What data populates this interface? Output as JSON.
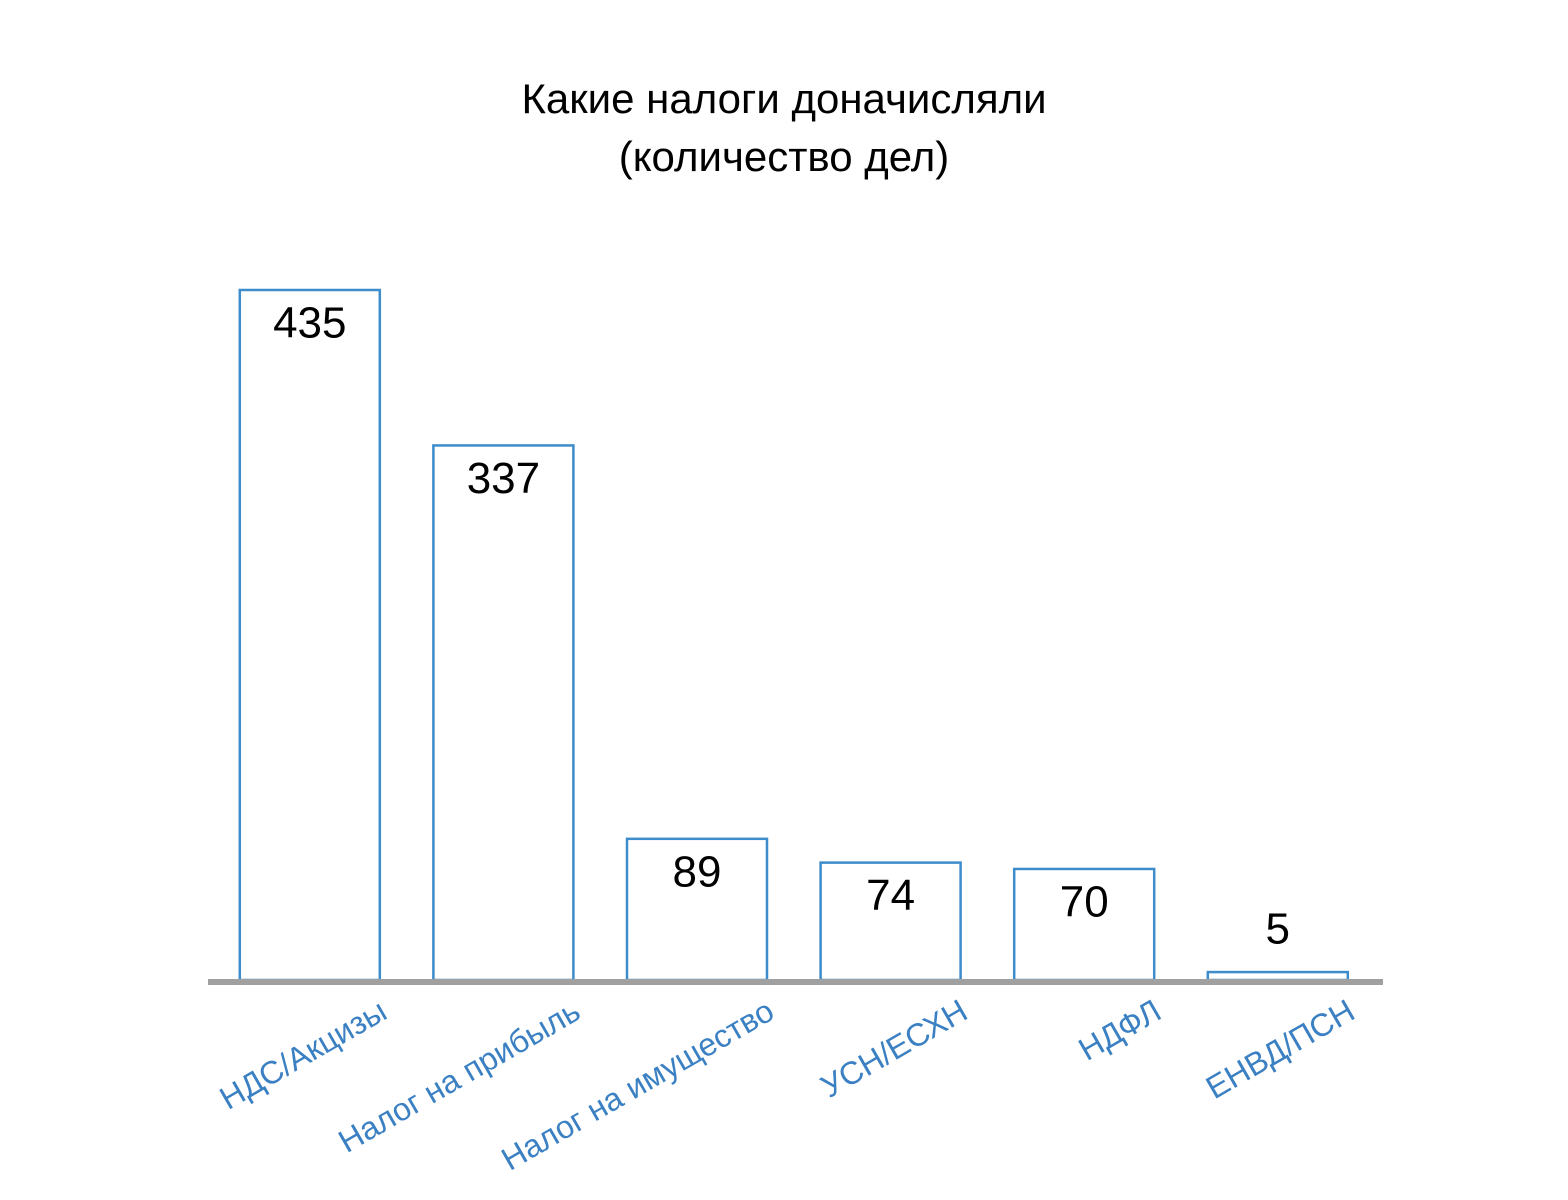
{
  "chart_data": {
    "type": "bar",
    "title": "Какие налоги доначисляли",
    "subtitle": "(количество дел)",
    "categories": [
      "НДС/Акцизы",
      "Налог на прибыль",
      "Налог на имущество",
      "УСН/ЕСХН",
      "НДФЛ",
      "ЕНВД/ПСН"
    ],
    "values": [
      435,
      337,
      89,
      74,
      70,
      5
    ],
    "color": "#3d8ccb",
    "label_color": "#3a80c2",
    "baseline_color": "#a0a0a0"
  }
}
